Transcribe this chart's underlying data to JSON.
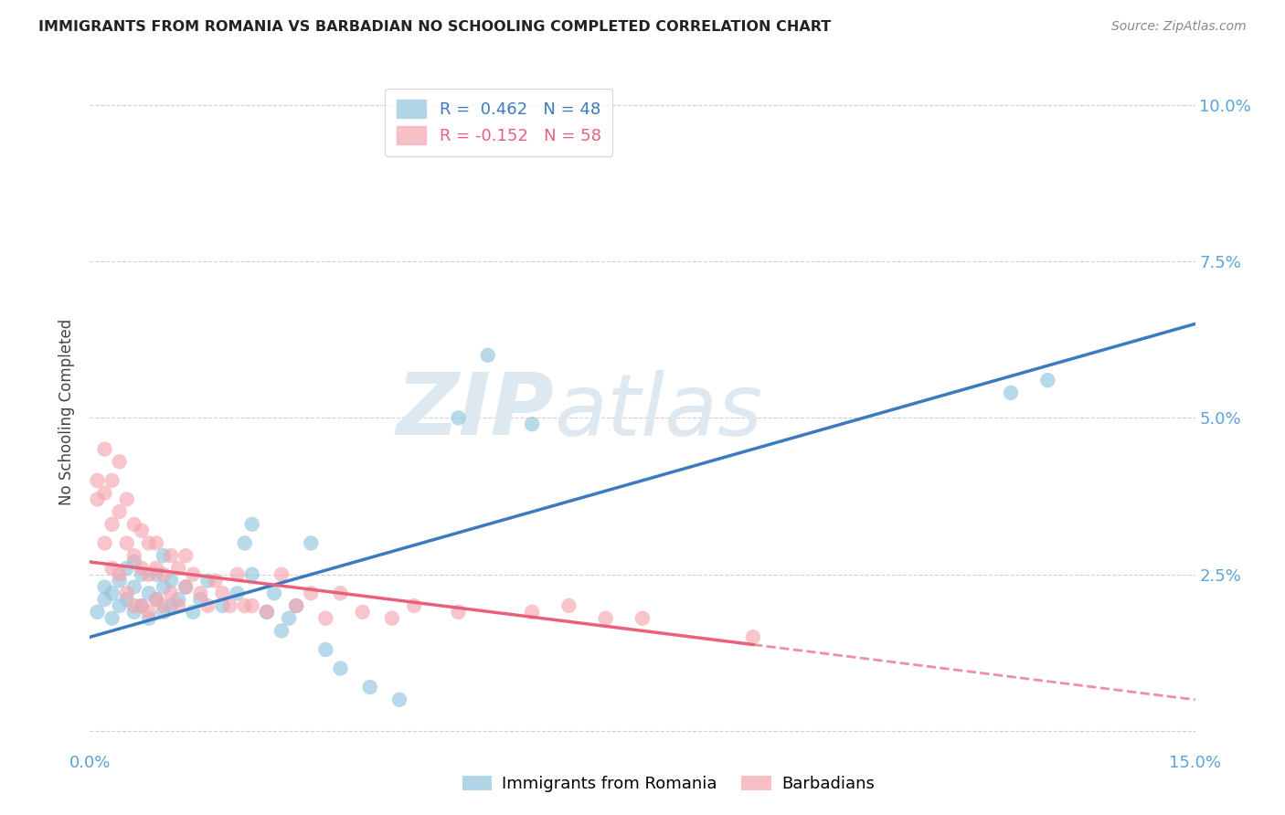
{
  "title": "IMMIGRANTS FROM ROMANIA VS BARBADIAN NO SCHOOLING COMPLETED CORRELATION CHART",
  "source": "Source: ZipAtlas.com",
  "ylabel": "No Schooling Completed",
  "xlim": [
    0.0,
    0.15
  ],
  "ylim": [
    -0.003,
    0.105
  ],
  "yticks": [
    0.0,
    0.025,
    0.05,
    0.075,
    0.1
  ],
  "ytick_labels": [
    "",
    "2.5%",
    "5.0%",
    "7.5%",
    "10.0%"
  ],
  "xticks": [
    0.0,
    0.03,
    0.06,
    0.09,
    0.12,
    0.15
  ],
  "xtick_labels": [
    "0.0%",
    "",
    "",
    "",
    "",
    "15.0%"
  ],
  "legend_r1": "R =  0.462   N = 48",
  "legend_r2": "R = -0.152   N = 58",
  "blue_color": "#92c5de",
  "pink_color": "#f4a6b0",
  "blue_line_color": "#3a7bbf",
  "pink_line_color": "#e8607a",
  "romania_x": [
    0.001,
    0.002,
    0.002,
    0.003,
    0.003,
    0.004,
    0.004,
    0.005,
    0.005,
    0.006,
    0.006,
    0.006,
    0.007,
    0.007,
    0.008,
    0.008,
    0.009,
    0.009,
    0.01,
    0.01,
    0.01,
    0.011,
    0.011,
    0.012,
    0.013,
    0.014,
    0.015,
    0.016,
    0.018,
    0.02,
    0.021,
    0.022,
    0.022,
    0.024,
    0.025,
    0.026,
    0.027,
    0.028,
    0.03,
    0.032,
    0.034,
    0.038,
    0.042,
    0.05,
    0.054,
    0.06,
    0.125,
    0.13
  ],
  "romania_y": [
    0.019,
    0.021,
    0.023,
    0.018,
    0.022,
    0.02,
    0.024,
    0.021,
    0.026,
    0.019,
    0.023,
    0.027,
    0.02,
    0.025,
    0.018,
    0.022,
    0.021,
    0.025,
    0.019,
    0.023,
    0.028,
    0.02,
    0.024,
    0.021,
    0.023,
    0.019,
    0.021,
    0.024,
    0.02,
    0.022,
    0.03,
    0.025,
    0.033,
    0.019,
    0.022,
    0.016,
    0.018,
    0.02,
    0.03,
    0.013,
    0.01,
    0.007,
    0.005,
    0.05,
    0.06,
    0.049,
    0.054,
    0.056
  ],
  "barbadian_x": [
    0.001,
    0.001,
    0.002,
    0.002,
    0.002,
    0.003,
    0.003,
    0.003,
    0.004,
    0.004,
    0.004,
    0.005,
    0.005,
    0.005,
    0.006,
    0.006,
    0.006,
    0.007,
    0.007,
    0.007,
    0.008,
    0.008,
    0.008,
    0.009,
    0.009,
    0.009,
    0.01,
    0.01,
    0.011,
    0.011,
    0.012,
    0.012,
    0.013,
    0.013,
    0.014,
    0.015,
    0.016,
    0.017,
    0.018,
    0.019,
    0.02,
    0.021,
    0.022,
    0.024,
    0.026,
    0.028,
    0.03,
    0.032,
    0.034,
    0.037,
    0.041,
    0.044,
    0.05,
    0.06,
    0.065,
    0.07,
    0.075,
    0.09
  ],
  "barbadian_y": [
    0.037,
    0.04,
    0.03,
    0.038,
    0.045,
    0.026,
    0.033,
    0.04,
    0.025,
    0.035,
    0.043,
    0.022,
    0.03,
    0.037,
    0.02,
    0.028,
    0.033,
    0.02,
    0.026,
    0.032,
    0.019,
    0.025,
    0.03,
    0.021,
    0.026,
    0.03,
    0.02,
    0.025,
    0.022,
    0.028,
    0.02,
    0.026,
    0.023,
    0.028,
    0.025,
    0.022,
    0.02,
    0.024,
    0.022,
    0.02,
    0.025,
    0.02,
    0.02,
    0.019,
    0.025,
    0.02,
    0.022,
    0.018,
    0.022,
    0.019,
    0.018,
    0.02,
    0.019,
    0.019,
    0.02,
    0.018,
    0.018,
    0.015
  ],
  "watermark_zip": "ZIP",
  "watermark_atlas": "atlas",
  "background_color": "#ffffff",
  "grid_color": "#d0d0d0"
}
